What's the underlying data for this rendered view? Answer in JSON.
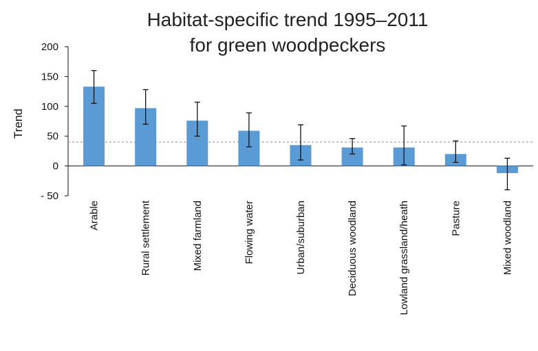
{
  "chart_data": {
    "type": "bar",
    "title": [
      "Habitat-specific trend 1995–2011",
      "for green woodpeckers"
    ],
    "ylabel": "Trend",
    "xlabel": "",
    "ylim": [
      -50,
      200
    ],
    "yticks": [
      200,
      150,
      100,
      50,
      0,
      -50
    ],
    "ytick_labels": [
      "200",
      "150",
      "100",
      "50",
      "0",
      "- 50"
    ],
    "categories": [
      "Arable",
      "Rural settlement",
      "Mixed farmland",
      "Flowing water",
      "Urban/suburban",
      "Deciduous woodland",
      "Lowland grassland/heath",
      "Pasture",
      "Mixed woodland"
    ],
    "values": [
      133,
      97,
      76,
      59,
      35,
      31,
      31,
      20,
      -12
    ],
    "error_low": [
      105,
      70,
      50,
      32,
      10,
      20,
      2,
      6,
      -40
    ],
    "error_high": [
      160,
      128,
      107,
      89,
      69,
      46,
      67,
      42,
      13
    ],
    "reference_line": 40,
    "bar_color": "#5b9bd5",
    "grid": false,
    "legend": "none"
  }
}
